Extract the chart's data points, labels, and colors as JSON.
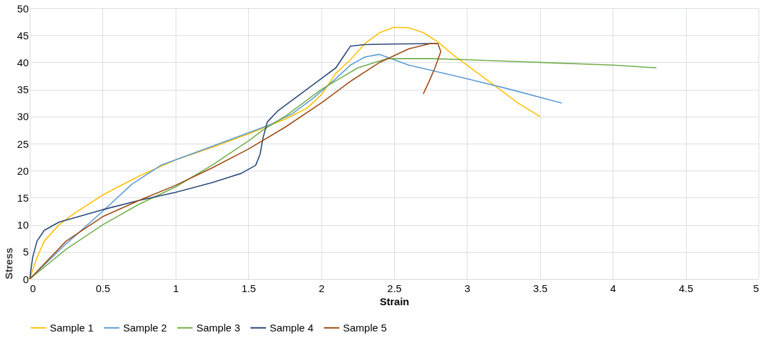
{
  "chart_data": {
    "type": "line",
    "xlabel": "Strain",
    "ylabel": "Stress",
    "xlim": [
      0,
      5
    ],
    "xticks": [
      0,
      0.5,
      1,
      1.5,
      2,
      2.5,
      3,
      3.5,
      4,
      4.5,
      5
    ],
    "ylim": [
      0,
      50
    ],
    "yticks": [
      0,
      5,
      10,
      15,
      20,
      25,
      30,
      35,
      40,
      45,
      50
    ],
    "grid": true,
    "legend": "bottom",
    "marker": "none",
    "line_style": "solid",
    "series": [
      {
        "name": "Sample 1",
        "color": "#ffc000",
        "x": [
          0,
          0.05,
          0.1,
          0.2,
          0.3,
          0.5,
          0.75,
          1,
          1.25,
          1.5,
          1.75,
          1.9,
          2,
          2.1,
          2.2,
          2.3,
          2.4,
          2.5,
          2.6,
          2.7,
          2.8,
          2.9,
          3,
          3.2,
          3.35,
          3.5
        ],
        "values": [
          0,
          4,
          7,
          10,
          12,
          15.5,
          19,
          22,
          24.3,
          26.8,
          29.5,
          31.5,
          34,
          38,
          40.5,
          43.5,
          45.5,
          46.5,
          46.4,
          45.5,
          43.8,
          41.5,
          39.5,
          35.5,
          32.5,
          30
        ]
      },
      {
        "name": "Sample 2",
        "color": "#5b9bd5",
        "x": [
          0,
          0.25,
          0.5,
          0.7,
          0.9,
          1,
          1.25,
          1.5,
          1.65,
          1.8,
          1.95,
          2.1,
          2.2,
          2.3,
          2.4,
          2.6,
          3,
          3.3,
          3.65
        ],
        "values": [
          0,
          6.5,
          12.5,
          17.5,
          21,
          22,
          24.5,
          27,
          28.5,
          30.5,
          33.5,
          37,
          39.5,
          41,
          41.5,
          39.5,
          37,
          35,
          32.5
        ]
      },
      {
        "name": "Sample 3",
        "color": "#70ad47",
        "x": [
          0,
          0.25,
          0.5,
          0.75,
          1,
          1.25,
          1.5,
          1.6,
          1.75,
          2,
          2.25,
          2.45,
          2.75,
          3,
          3.5,
          4,
          4.3
        ],
        "values": [
          0,
          5.5,
          10,
          13.8,
          17,
          21,
          25.5,
          27.5,
          30,
          35,
          39,
          40.7,
          40.7,
          40.5,
          40,
          39.5,
          39
        ]
      },
      {
        "name": "Sample 4",
        "color": "#264478",
        "x": [
          0,
          0.02,
          0.05,
          0.1,
          0.2,
          0.5,
          0.75,
          1,
          1.25,
          1.45,
          1.55,
          1.58,
          1.6,
          1.63,
          1.7,
          1.85,
          2,
          2.1,
          2.15,
          2.2,
          2.3,
          2.5,
          2.8
        ],
        "values": [
          0,
          4,
          7,
          9,
          10.5,
          12.8,
          14.5,
          16,
          17.8,
          19.5,
          21,
          23,
          26,
          29,
          31,
          34,
          37,
          39,
          41,
          43,
          43.3,
          43.4,
          43.5
        ]
      },
      {
        "name": "Sample 5",
        "color": "#9e480e",
        "x": [
          0,
          0.25,
          0.5,
          0.75,
          1,
          1.25,
          1.5,
          1.75,
          2,
          2.2,
          2.4,
          2.6,
          2.75,
          2.8,
          2.82,
          2.78,
          2.74,
          2.7
        ],
        "values": [
          0,
          7,
          11.5,
          14.5,
          17.3,
          20.5,
          24,
          28,
          32.5,
          36.5,
          40,
          42.5,
          43.5,
          43.5,
          42,
          39,
          36.5,
          34.2
        ]
      }
    ]
  }
}
